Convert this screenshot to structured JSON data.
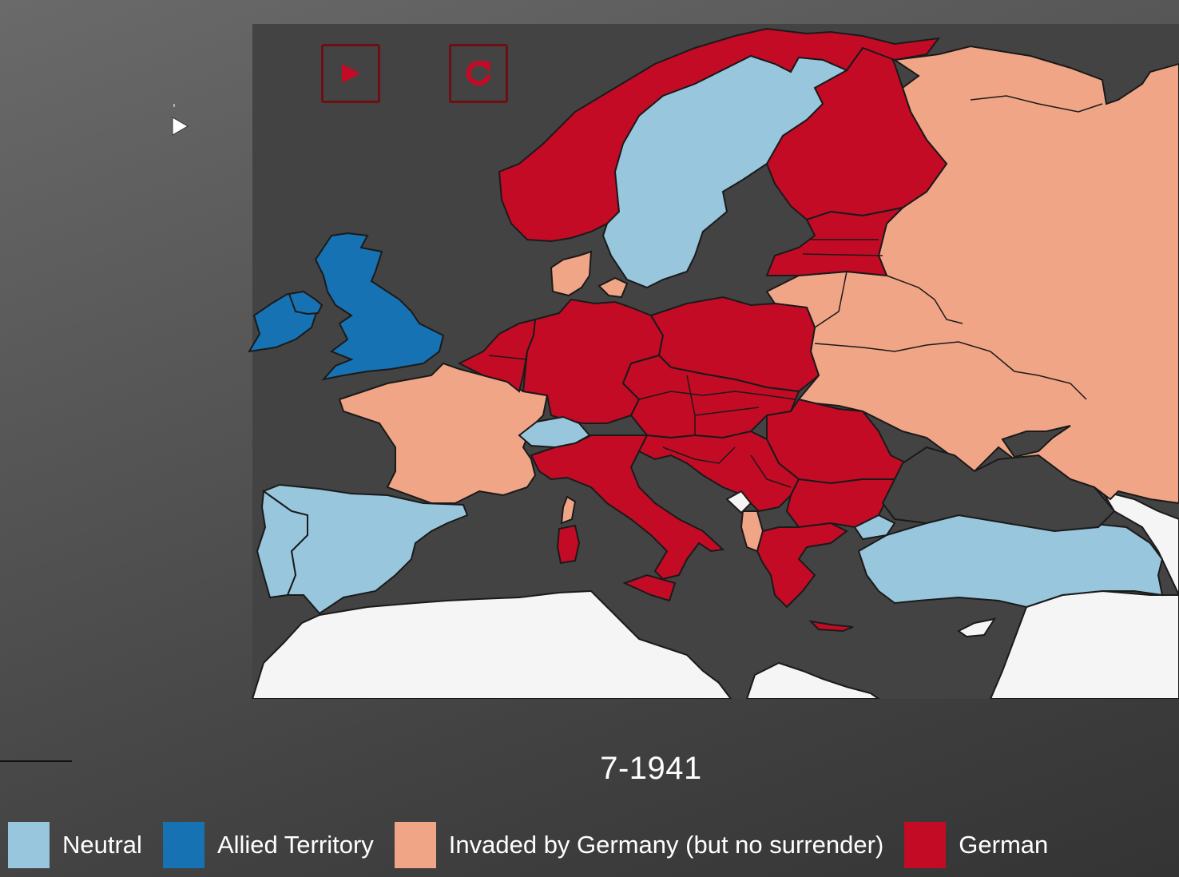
{
  "controls": {
    "play": {
      "icon": "play-icon"
    },
    "reset": {
      "icon": "reset-icon"
    }
  },
  "timeline": {
    "date": "7-1941"
  },
  "colors": {
    "sea": "#434343",
    "neutral": "#98c6dd",
    "allied": "#1672b2",
    "invaded": "#f0a586",
    "german": "#c40b25",
    "other": "#f5f5f5",
    "border": "#1a1a1a"
  },
  "legend": [
    {
      "label": "Neutral",
      "color": "#98c6dd"
    },
    {
      "label": "Allied Territory",
      "color": "#1672b2"
    },
    {
      "label": "Invaded by Germany (but no surrender)",
      "color": "#f0a586"
    },
    {
      "label": "German",
      "color": "#c40b25"
    }
  ],
  "regions": {
    "neutral": [
      "Sweden",
      "Switzerland",
      "Spain",
      "Portugal",
      "Turkey",
      "Ireland"
    ],
    "allied": [
      "United Kingdom",
      "Northern Ireland"
    ],
    "invaded": [
      "Soviet Union",
      "France",
      "Denmark",
      "Corsica",
      "Sardinia",
      "Albania"
    ],
    "german": [
      "Norway",
      "Finland",
      "Baltic States",
      "Germany",
      "Poland",
      "Netherlands",
      "Belgium",
      "Italy",
      "Sicily",
      "Hungary",
      "Romania",
      "Yugoslavia",
      "Bulgaria",
      "Greece",
      "Crete"
    ],
    "other": [
      "North Africa",
      "Middle East"
    ]
  }
}
